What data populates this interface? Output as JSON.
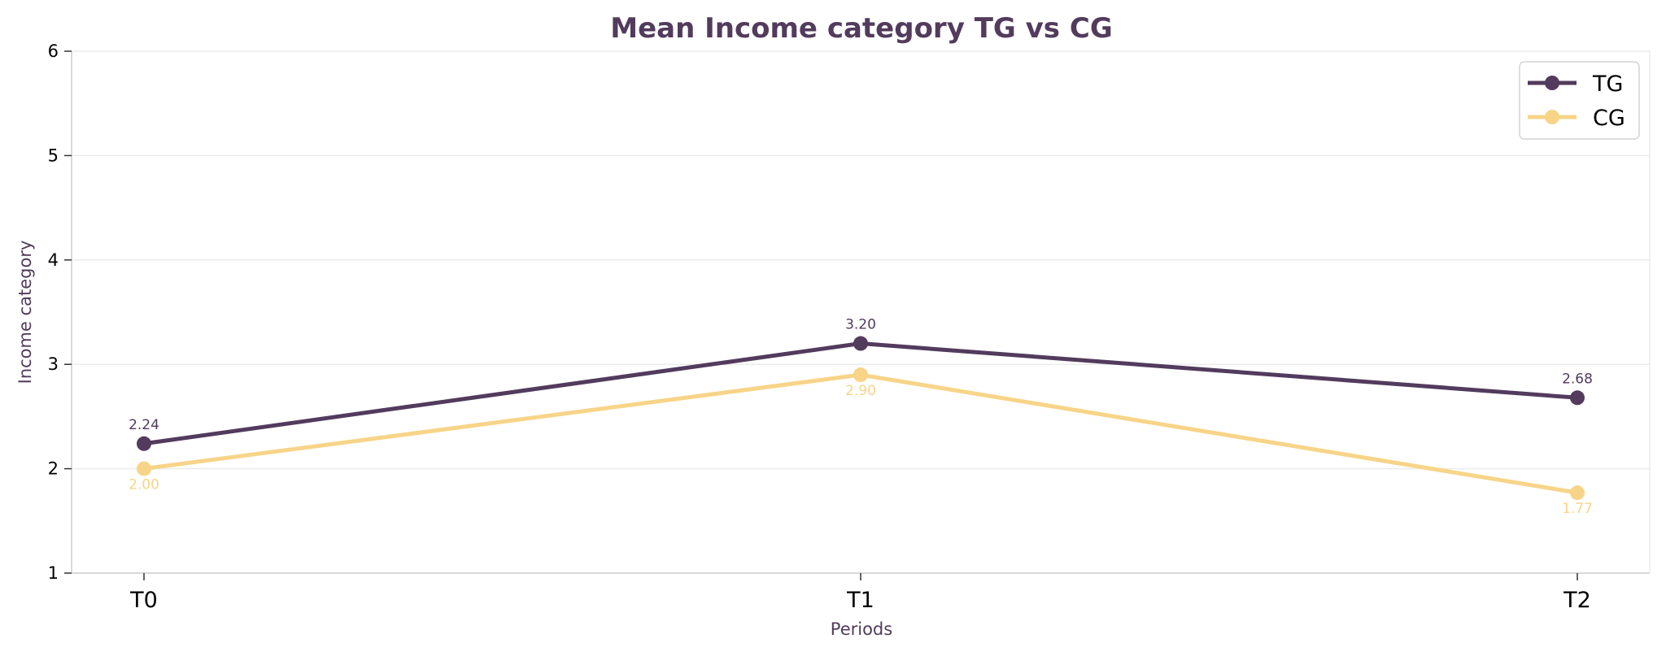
{
  "chart_data": {
    "type": "line",
    "title": "Mean Income category TG vs CG",
    "xlabel": "Periods",
    "ylabel": "Income category",
    "categories": [
      "T0",
      "T1",
      "T2"
    ],
    "ylim": [
      1,
      6
    ],
    "yticks": [
      "1",
      "2",
      "3",
      "4",
      "5",
      "6"
    ],
    "grid": "horizontal",
    "legend_position": "top-right",
    "series": [
      {
        "name": "TG",
        "color": "#523b5c",
        "values": [
          2.24,
          3.2,
          2.68
        ],
        "labels": [
          "2.24",
          "3.20",
          "2.68"
        ],
        "label_position": "above"
      },
      {
        "name": "CG",
        "color": "#f7d488",
        "values": [
          2.0,
          2.9,
          1.77
        ],
        "labels": [
          "2.00",
          "2.90",
          "1.77"
        ],
        "label_position": "below"
      }
    ]
  }
}
